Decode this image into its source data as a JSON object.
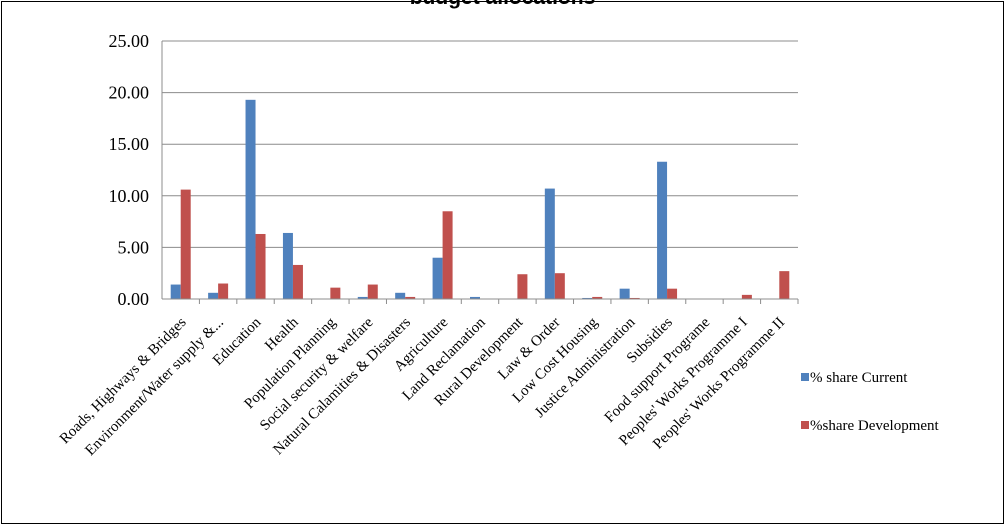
{
  "chart_data": {
    "type": "bar",
    "title": "budget allocations",
    "xlabel": "",
    "ylabel": "",
    "ylim": [
      0,
      25
    ],
    "yticks": [
      "0.00",
      "5.00",
      "10.00",
      "15.00",
      "20.00",
      "25.00"
    ],
    "grid": true,
    "legend_position": "right",
    "categories": [
      "Roads, Highways & Bridges",
      "Environment/Water supply &...",
      "Education",
      "Health",
      "Population Planning",
      "Social security & welfare",
      "Natural Calamities & Disasters",
      "Agriculture",
      "Land Reclamation",
      "Rural Development",
      "Law & Order",
      "Low Cost Housing",
      "Justice Administration",
      "Subsidies",
      "Food support Programe",
      "Peoples' Works Programme I",
      "Peoples' Works Programme II"
    ],
    "series": [
      {
        "name": "% share Current",
        "color": "#4f81bd",
        "values": [
          1.4,
          0.6,
          19.3,
          6.4,
          0.0,
          0.2,
          0.6,
          4.0,
          0.2,
          0.0,
          10.7,
          0.1,
          1.0,
          13.3,
          0.0,
          0.0,
          0.0
        ]
      },
      {
        "name": "%share Development",
        "color": "#c0504d",
        "values": [
          10.6,
          1.5,
          6.3,
          3.3,
          1.1,
          1.4,
          0.2,
          8.5,
          0.0,
          2.4,
          2.5,
          0.2,
          0.1,
          1.0,
          0.0,
          0.4,
          2.7
        ]
      }
    ]
  }
}
